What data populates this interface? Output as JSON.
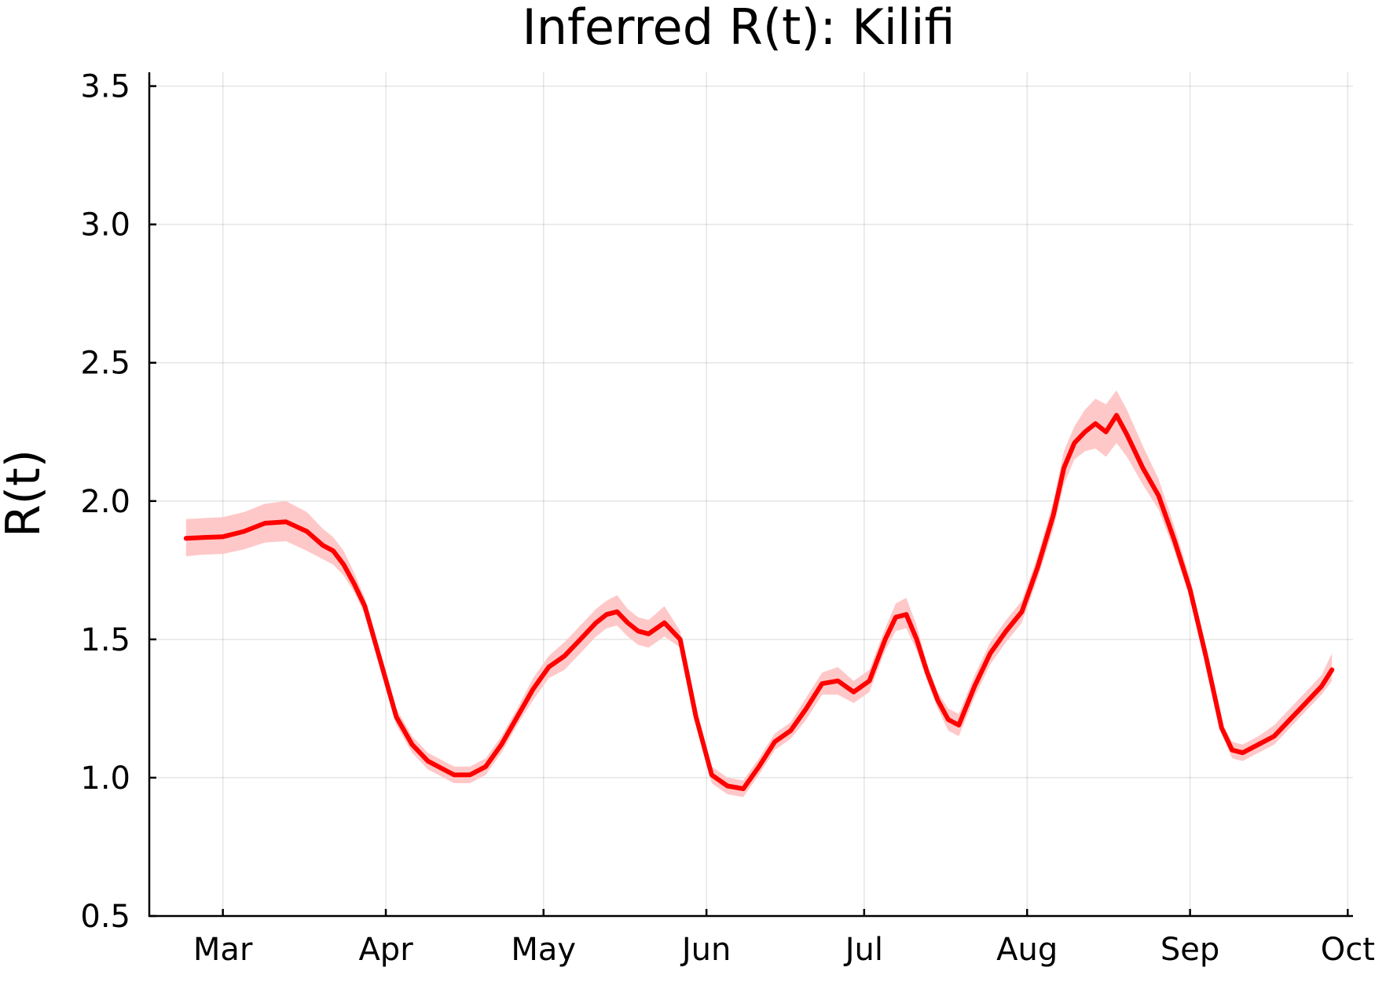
{
  "chart_data": {
    "type": "line",
    "title": "Inferred R(t): Kilifi",
    "xlabel": "",
    "ylabel": "R(t)",
    "x_scale": "date",
    "xlim": [
      "2021-02-15",
      "2021-10-02"
    ],
    "ylim": [
      0.5,
      3.55
    ],
    "x_ticks": [
      {
        "date": "2021-03-01",
        "label": "Mar"
      },
      {
        "date": "2021-04-01",
        "label": "Apr"
      },
      {
        "date": "2021-05-01",
        "label": "May"
      },
      {
        "date": "2021-06-01",
        "label": "Jun"
      },
      {
        "date": "2021-07-01",
        "label": "Jul"
      },
      {
        "date": "2021-08-01",
        "label": "Aug"
      },
      {
        "date": "2021-09-01",
        "label": "Sep"
      },
      {
        "date": "2021-10-01",
        "label": "Oct"
      }
    ],
    "y_ticks": [
      {
        "value": 0.5,
        "label": "0.5"
      },
      {
        "value": 1.0,
        "label": "1.0"
      },
      {
        "value": 1.5,
        "label": "1.5"
      },
      {
        "value": 2.0,
        "label": "2.0"
      },
      {
        "value": 2.5,
        "label": "2.5"
      },
      {
        "value": 3.0,
        "label": "3.0"
      },
      {
        "value": 3.5,
        "label": "3.5"
      }
    ],
    "grid": true,
    "legend": "none",
    "line_color": "#ff0000",
    "band_color": "#ffc8c8",
    "series": [
      {
        "x": [
          "2021-02-22",
          "2021-02-25",
          "2021-03-01",
          "2021-03-05",
          "2021-03-09",
          "2021-03-13",
          "2021-03-17",
          "2021-03-20",
          "2021-03-22",
          "2021-03-24",
          "2021-03-26",
          "2021-03-28",
          "2021-03-31",
          "2021-04-03",
          "2021-04-06",
          "2021-04-09",
          "2021-04-12",
          "2021-04-14",
          "2021-04-17",
          "2021-04-20",
          "2021-04-23",
          "2021-04-26",
          "2021-04-29",
          "2021-05-02",
          "2021-05-05",
          "2021-05-08",
          "2021-05-11",
          "2021-05-13",
          "2021-05-15",
          "2021-05-17",
          "2021-05-19",
          "2021-05-21",
          "2021-05-24",
          "2021-05-27",
          "2021-05-30",
          "2021-06-02",
          "2021-06-05",
          "2021-06-08",
          "2021-06-11",
          "2021-06-14",
          "2021-06-17",
          "2021-06-20",
          "2021-06-23",
          "2021-06-26",
          "2021-06-29",
          "2021-07-02",
          "2021-07-05",
          "2021-07-07",
          "2021-07-09",
          "2021-07-11",
          "2021-07-13",
          "2021-07-15",
          "2021-07-17",
          "2021-07-19",
          "2021-07-22",
          "2021-07-25",
          "2021-07-28",
          "2021-07-31",
          "2021-08-03",
          "2021-08-06",
          "2021-08-08",
          "2021-08-10",
          "2021-08-12",
          "2021-08-14",
          "2021-08-16",
          "2021-08-18",
          "2021-08-20",
          "2021-08-23",
          "2021-08-26",
          "2021-08-29",
          "2021-09-01",
          "2021-09-04",
          "2021-09-07",
          "2021-09-09",
          "2021-09-11",
          "2021-09-14",
          "2021-09-17",
          "2021-09-20",
          "2021-09-23",
          "2021-09-26",
          "2021-09-28"
        ],
        "y": [
          1.865,
          1.868,
          1.871,
          1.89,
          1.92,
          1.925,
          1.89,
          1.84,
          1.82,
          1.77,
          1.7,
          1.62,
          1.42,
          1.22,
          1.12,
          1.06,
          1.03,
          1.01,
          1.01,
          1.04,
          1.12,
          1.22,
          1.32,
          1.4,
          1.44,
          1.5,
          1.56,
          1.59,
          1.6,
          1.56,
          1.53,
          1.52,
          1.56,
          1.5,
          1.22,
          1.01,
          0.97,
          0.96,
          1.04,
          1.13,
          1.17,
          1.25,
          1.34,
          1.35,
          1.31,
          1.35,
          1.5,
          1.58,
          1.59,
          1.5,
          1.38,
          1.28,
          1.21,
          1.19,
          1.33,
          1.45,
          1.53,
          1.6,
          1.76,
          1.95,
          2.12,
          2.21,
          2.25,
          2.28,
          2.25,
          2.31,
          2.24,
          2.12,
          2.02,
          1.86,
          1.68,
          1.44,
          1.18,
          1.1,
          1.09,
          1.12,
          1.15,
          1.21,
          1.27,
          1.33,
          1.39
        ],
        "lower": [
          1.8,
          1.806,
          1.809,
          1.825,
          1.85,
          1.855,
          1.82,
          1.79,
          1.77,
          1.73,
          1.67,
          1.59,
          1.39,
          1.19,
          1.09,
          1.03,
          1.0,
          0.98,
          0.98,
          1.01,
          1.09,
          1.19,
          1.28,
          1.36,
          1.39,
          1.45,
          1.51,
          1.54,
          1.55,
          1.51,
          1.48,
          1.47,
          1.51,
          1.47,
          1.19,
          0.98,
          0.94,
          0.93,
          1.01,
          1.1,
          1.14,
          1.21,
          1.3,
          1.3,
          1.27,
          1.31,
          1.46,
          1.53,
          1.54,
          1.46,
          1.35,
          1.25,
          1.17,
          1.15,
          1.29,
          1.41,
          1.49,
          1.56,
          1.72,
          1.9,
          2.06,
          2.15,
          2.18,
          2.19,
          2.16,
          2.21,
          2.16,
          2.06,
          1.97,
          1.82,
          1.65,
          1.42,
          1.16,
          1.07,
          1.06,
          1.09,
          1.12,
          1.18,
          1.24,
          1.3,
          1.35
        ],
        "upper": [
          1.935,
          1.938,
          1.942,
          1.96,
          1.99,
          2.0,
          1.96,
          1.9,
          1.87,
          1.82,
          1.74,
          1.65,
          1.45,
          1.25,
          1.15,
          1.09,
          1.06,
          1.04,
          1.04,
          1.07,
          1.15,
          1.25,
          1.36,
          1.44,
          1.49,
          1.55,
          1.61,
          1.64,
          1.66,
          1.61,
          1.58,
          1.57,
          1.62,
          1.53,
          1.25,
          1.04,
          1.0,
          0.99,
          1.07,
          1.16,
          1.2,
          1.29,
          1.38,
          1.4,
          1.35,
          1.39,
          1.54,
          1.63,
          1.65,
          1.55,
          1.41,
          1.31,
          1.25,
          1.23,
          1.37,
          1.49,
          1.57,
          1.64,
          1.8,
          2.0,
          2.18,
          2.27,
          2.33,
          2.37,
          2.35,
          2.4,
          2.33,
          2.2,
          2.08,
          1.91,
          1.72,
          1.47,
          1.2,
          1.13,
          1.12,
          1.15,
          1.19,
          1.25,
          1.31,
          1.37,
          1.45
        ]
      }
    ]
  }
}
